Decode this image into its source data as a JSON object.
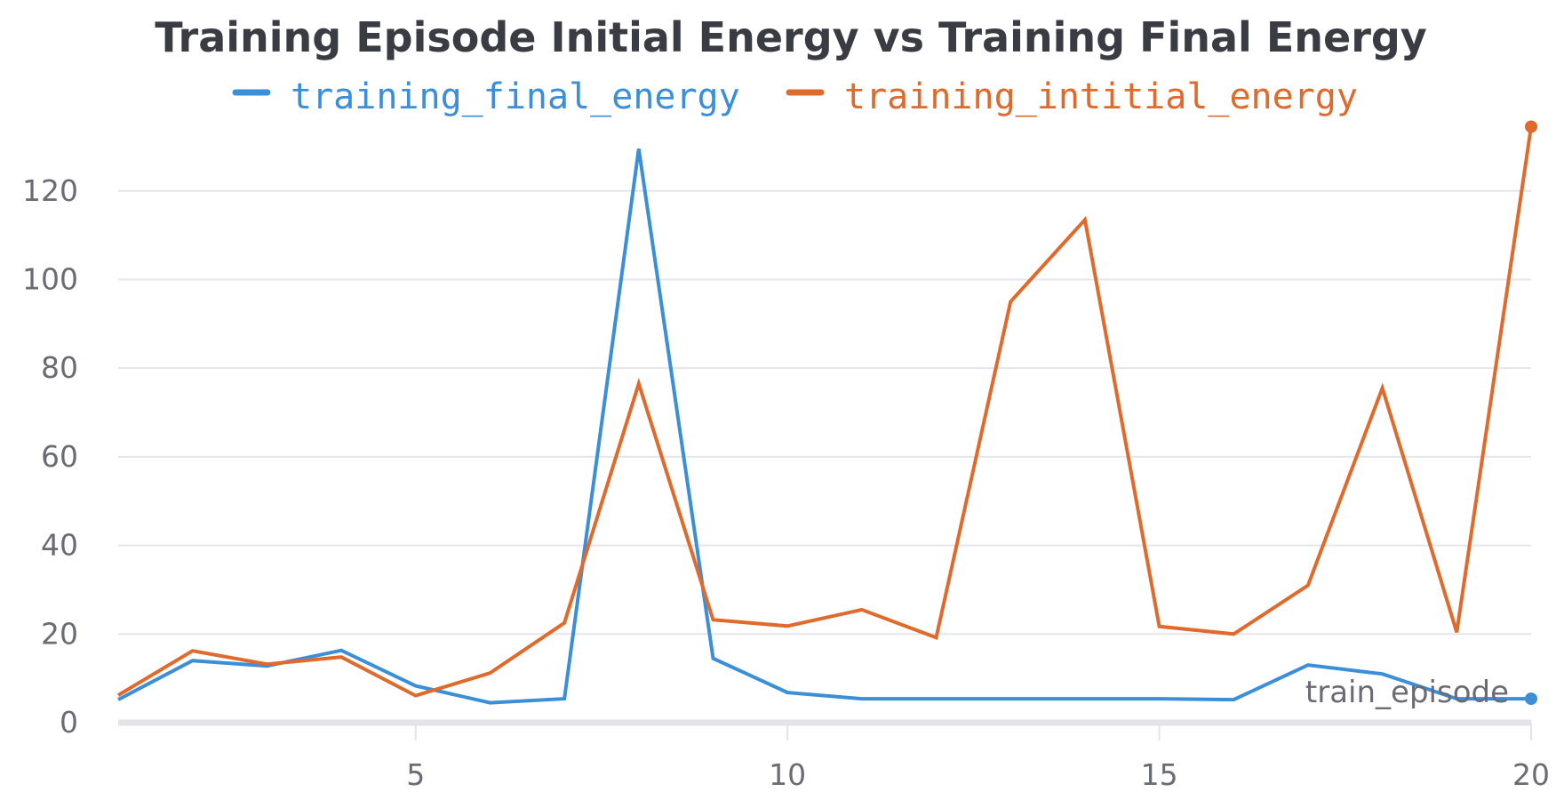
{
  "chart_data": {
    "type": "line",
    "title": "Training Episode Initial Energy vs Training Final Energy",
    "xlabel": "train_episode",
    "ylabel": "",
    "x": [
      1,
      2,
      3,
      4,
      5,
      6,
      7,
      8,
      9,
      10,
      11,
      12,
      13,
      14,
      15,
      16,
      17,
      18,
      19,
      20
    ],
    "xlim": [
      1,
      20
    ],
    "ylim": [
      0,
      135
    ],
    "x_ticks": [
      5,
      10,
      15,
      20
    ],
    "y_ticks": [
      0,
      20,
      40,
      60,
      80,
      100,
      120
    ],
    "grid": true,
    "legend_position": "top",
    "series": [
      {
        "name": "training_final_energy",
        "color": "#3a8fd8",
        "values": [
          5.2,
          14,
          12.8,
          16.3,
          8.3,
          4.5,
          5.4,
          129.5,
          14.5,
          6.8,
          5.4,
          5.4,
          5.4,
          5.4,
          5.4,
          5.2,
          13,
          11,
          5.4,
          5.4
        ]
      },
      {
        "name": "training_intitial_energy",
        "color": "#e06a2c",
        "values": [
          6.2,
          16.2,
          13.2,
          14.8,
          6.1,
          11.2,
          22.5,
          76.5,
          23.2,
          21.8,
          25.5,
          19.2,
          95,
          113.5,
          21.7,
          20,
          31,
          75.5,
          20.4,
          134.5
        ]
      }
    ]
  }
}
